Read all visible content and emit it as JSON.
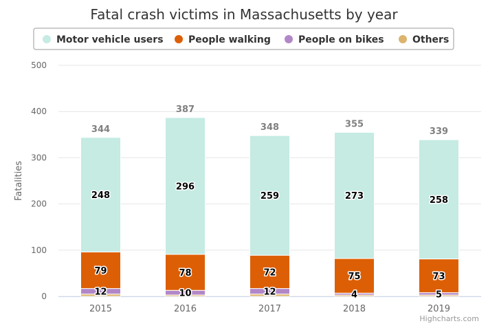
{
  "chart_data": {
    "type": "bar",
    "stacked": true,
    "title": "Fatal crash victims in Massachusetts by year",
    "ylabel": "Fatalities",
    "xlabel": "",
    "categories": [
      "2015",
      "2016",
      "2017",
      "2018",
      "2019"
    ],
    "ylim": [
      0,
      500
    ],
    "yticks": [
      0,
      100,
      200,
      300,
      400,
      500
    ],
    "grid": true,
    "legend_position": "top",
    "series": [
      {
        "name": "Motor vehicle users",
        "color": "#c5ebe3",
        "values": [
          248,
          296,
          259,
          273,
          258
        ],
        "show_labels": true
      },
      {
        "name": "People walking",
        "color": "#dd5f05",
        "values": [
          79,
          78,
          72,
          75,
          73
        ],
        "show_labels": true
      },
      {
        "name": "People on bikes",
        "color": "#b287c8",
        "values": [
          12,
          10,
          12,
          4,
          5
        ],
        "show_labels": true
      },
      {
        "name": "Others",
        "color": "#dcb46e",
        "values": [
          5,
          3,
          5,
          3,
          3
        ],
        "show_labels": false
      }
    ],
    "totals": [
      "344",
      "387",
      "348",
      "355",
      "339"
    ]
  },
  "credits": "Highcharts.com"
}
